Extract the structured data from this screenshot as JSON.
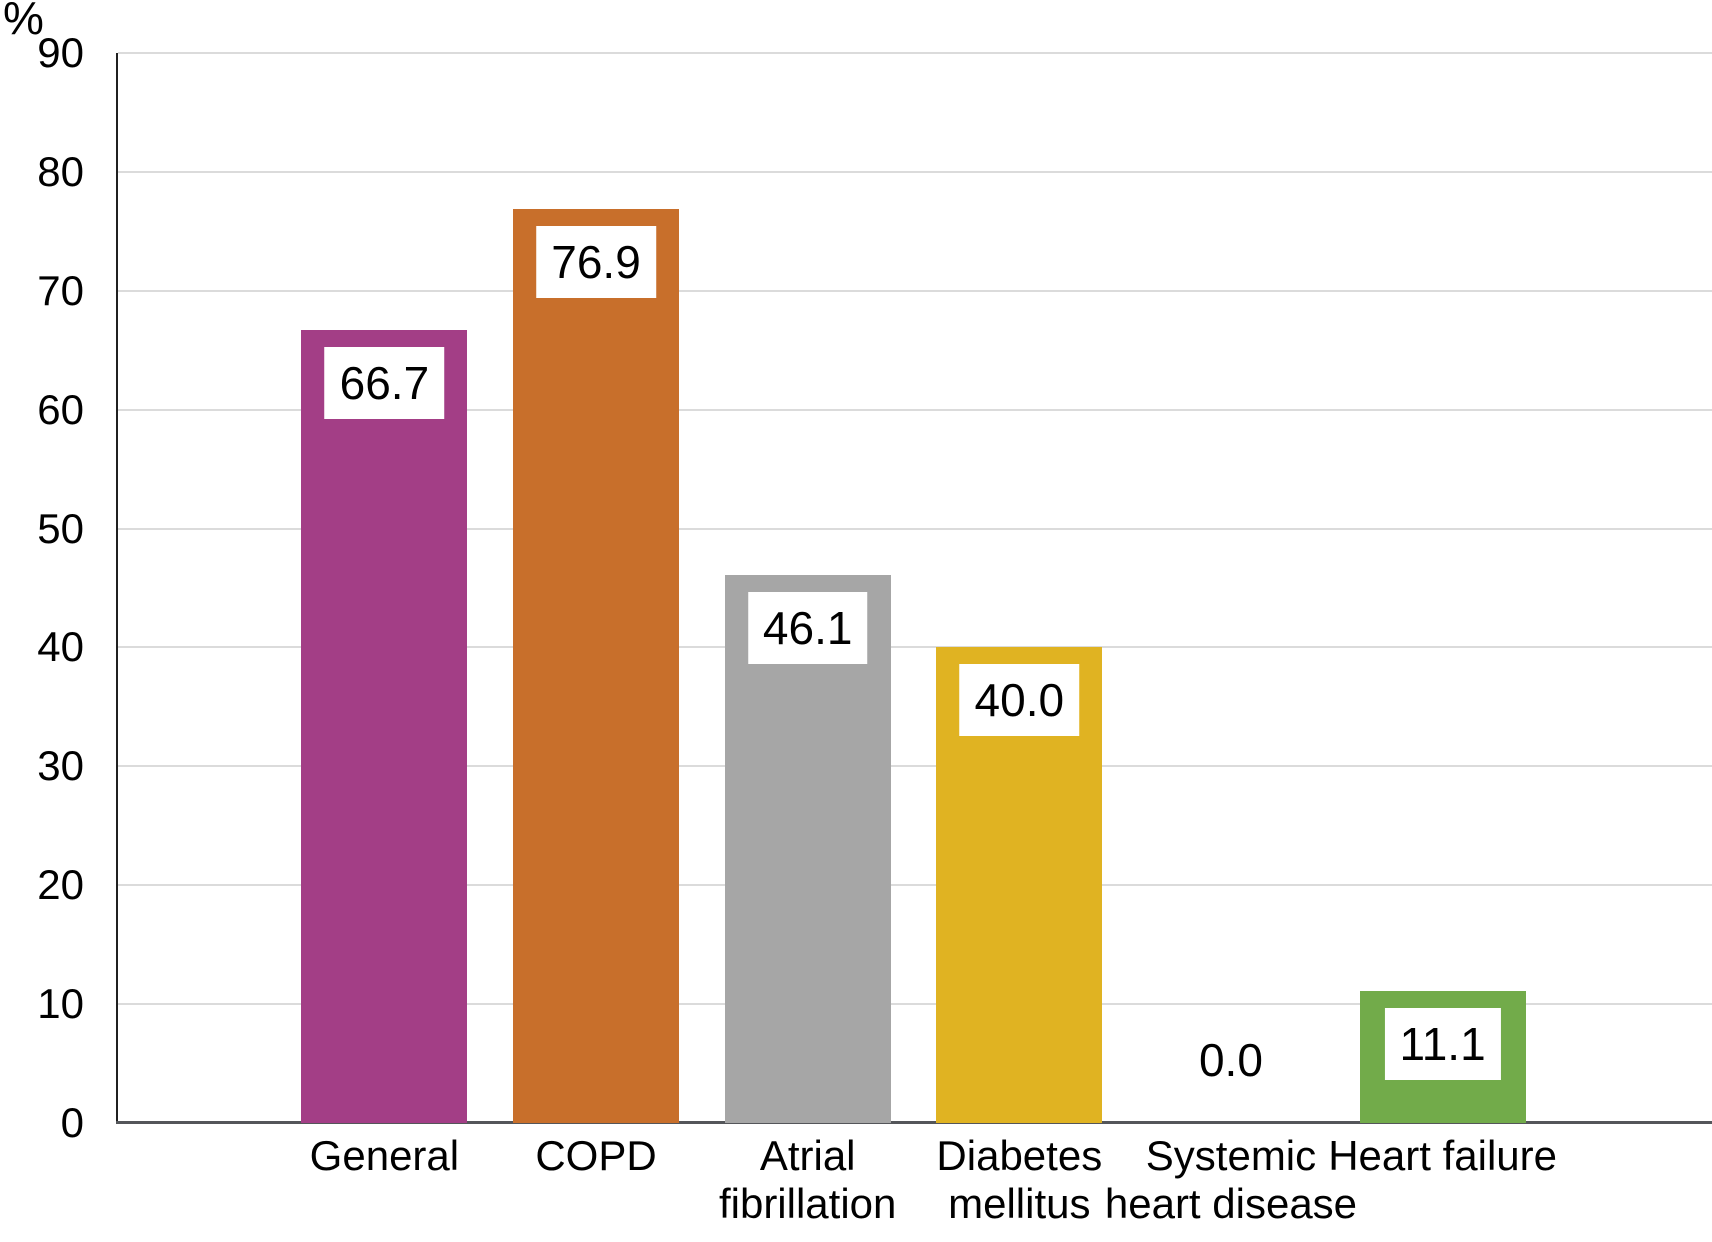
{
  "chart_data": {
    "type": "bar",
    "title": "",
    "xlabel": "",
    "ylabel": "%",
    "ylim": [
      0,
      90
    ],
    "yticks": [
      0,
      10,
      20,
      30,
      40,
      50,
      60,
      70,
      80,
      90
    ],
    "grid": true,
    "legend": false,
    "categories": [
      "General",
      "COPD",
      "Atrial fibrillation",
      "Diabetes mellitus",
      "Systemic heart disease",
      "Heart failure"
    ],
    "category_label_lines": [
      [
        "General"
      ],
      [
        "COPD"
      ],
      [
        "Atrial",
        "fibrillation"
      ],
      [
        "Diabetes",
        "mellitus"
      ],
      [
        "Systemic",
        "heart disease"
      ],
      [
        "Heart failure"
      ]
    ],
    "values": [
      66.7,
      76.9,
      46.1,
      40.0,
      0.0,
      11.1
    ],
    "value_labels": [
      "66.7",
      "76.9",
      "46.1",
      "40.0",
      "0.0",
      "11.1"
    ],
    "bar_colors": [
      "#A33E86",
      "#C86F2B",
      "#A6A6A6",
      "#E0B322",
      null,
      "#72AB4A"
    ]
  },
  "colors": {
    "background": "#FFFFFF",
    "gridline": "#DBDBDB",
    "y_axis_line": "#202020",
    "x_axis_baseline": "#54565A",
    "text": "#000000",
    "value_label_background": "#FFFFFF"
  }
}
